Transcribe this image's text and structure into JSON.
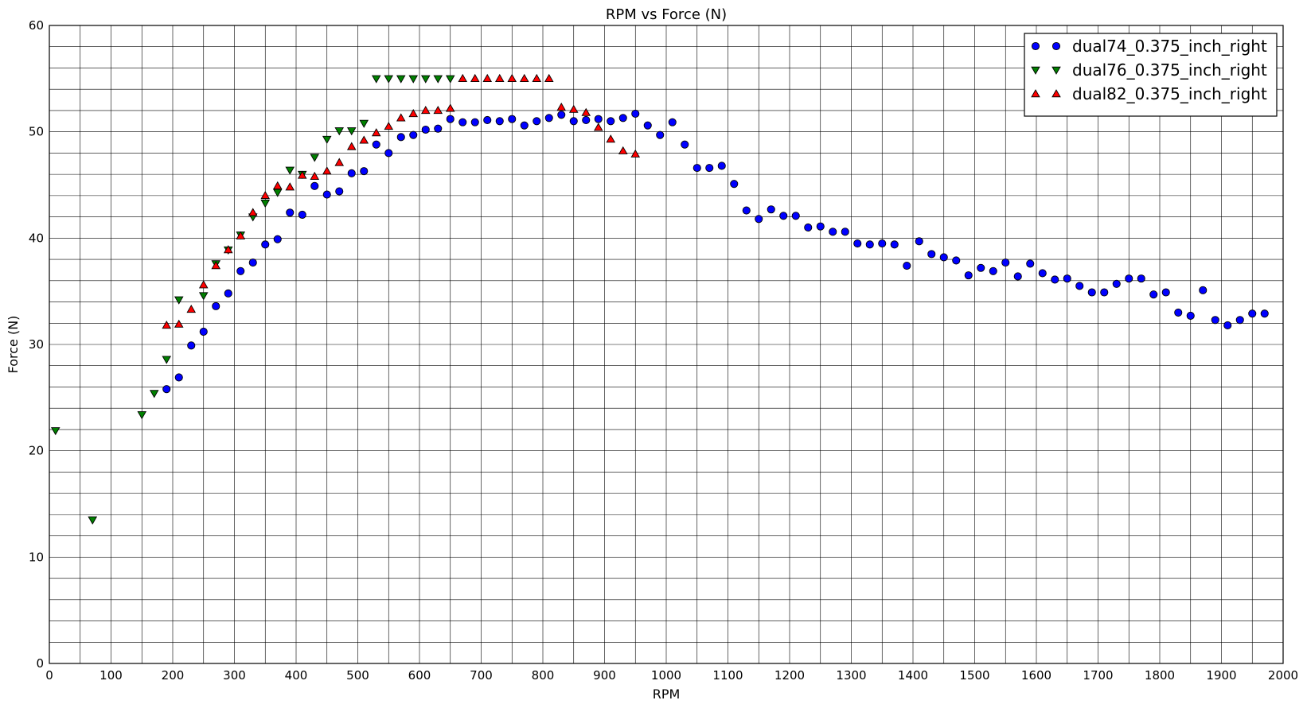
{
  "chart_data": {
    "type": "scatter",
    "title": "RPM vs Force (N)",
    "xlabel": "RPM",
    "ylabel": "Force (N)",
    "xlim": [
      0,
      2000
    ],
    "ylim": [
      0,
      60
    ],
    "x_ticks": [
      0,
      100,
      200,
      300,
      400,
      500,
      600,
      700,
      800,
      900,
      1000,
      1100,
      1200,
      1300,
      1400,
      1500,
      1600,
      1700,
      1800,
      1900,
      2000
    ],
    "y_ticks": [
      0,
      10,
      20,
      30,
      40,
      50,
      60
    ],
    "x_grid_step": 50,
    "y_grid_step": 2,
    "grid": true,
    "legend_position": "top-right",
    "series": [
      {
        "name": "dual74_0.375_inch_right",
        "marker": "circle",
        "color": "#0000ff",
        "points": [
          [
            190,
            25.8
          ],
          [
            210,
            26.9
          ],
          [
            230,
            29.9
          ],
          [
            250,
            31.2
          ],
          [
            270,
            33.6
          ],
          [
            290,
            34.8
          ],
          [
            310,
            36.9
          ],
          [
            330,
            37.7
          ],
          [
            350,
            39.4
          ],
          [
            370,
            39.9
          ],
          [
            390,
            42.4
          ],
          [
            410,
            42.2
          ],
          [
            430,
            44.9
          ],
          [
            450,
            44.1
          ],
          [
            470,
            44.4
          ],
          [
            490,
            46.1
          ],
          [
            510,
            46.3
          ],
          [
            530,
            48.8
          ],
          [
            550,
            48.0
          ],
          [
            570,
            49.5
          ],
          [
            590,
            49.7
          ],
          [
            610,
            50.2
          ],
          [
            630,
            50.3
          ],
          [
            650,
            51.2
          ],
          [
            670,
            50.9
          ],
          [
            690,
            50.9
          ],
          [
            710,
            51.1
          ],
          [
            730,
            51.0
          ],
          [
            750,
            51.2
          ],
          [
            770,
            50.6
          ],
          [
            790,
            51.0
          ],
          [
            810,
            51.3
          ],
          [
            830,
            51.6
          ],
          [
            850,
            51.0
          ],
          [
            870,
            51.1
          ],
          [
            890,
            51.2
          ],
          [
            910,
            51.0
          ],
          [
            930,
            51.3
          ],
          [
            950,
            51.7
          ],
          [
            970,
            50.6
          ],
          [
            990,
            49.7
          ],
          [
            1010,
            50.9
          ],
          [
            1030,
            48.8
          ],
          [
            1050,
            46.6
          ],
          [
            1070,
            46.6
          ],
          [
            1090,
            46.8
          ],
          [
            1110,
            45.1
          ],
          [
            1130,
            42.6
          ],
          [
            1150,
            41.8
          ],
          [
            1170,
            42.7
          ],
          [
            1190,
            42.1
          ],
          [
            1210,
            42.1
          ],
          [
            1230,
            41.0
          ],
          [
            1250,
            41.1
          ],
          [
            1270,
            40.6
          ],
          [
            1290,
            40.6
          ],
          [
            1310,
            39.5
          ],
          [
            1330,
            39.4
          ],
          [
            1350,
            39.5
          ],
          [
            1370,
            39.4
          ],
          [
            1390,
            37.4
          ],
          [
            1410,
            39.7
          ],
          [
            1430,
            38.5
          ],
          [
            1450,
            38.2
          ],
          [
            1470,
            37.9
          ],
          [
            1490,
            36.5
          ],
          [
            1510,
            37.2
          ],
          [
            1530,
            36.9
          ],
          [
            1550,
            37.7
          ],
          [
            1570,
            36.4
          ],
          [
            1590,
            37.6
          ],
          [
            1610,
            36.7
          ],
          [
            1630,
            36.1
          ],
          [
            1650,
            36.2
          ],
          [
            1670,
            35.5
          ],
          [
            1690,
            34.9
          ],
          [
            1710,
            34.9
          ],
          [
            1730,
            35.7
          ],
          [
            1750,
            36.2
          ],
          [
            1770,
            36.2
          ],
          [
            1790,
            34.7
          ],
          [
            1810,
            34.9
          ],
          [
            1830,
            33.0
          ],
          [
            1850,
            32.7
          ],
          [
            1870,
            35.1
          ],
          [
            1890,
            32.3
          ],
          [
            1910,
            31.8
          ],
          [
            1930,
            32.3
          ],
          [
            1950,
            32.9
          ],
          [
            1970,
            32.9
          ]
        ]
      },
      {
        "name": "dual76_0.375_inch_right",
        "marker": "triangle-down",
        "color": "#008000",
        "points": [
          [
            10,
            21.9
          ],
          [
            70,
            13.5
          ],
          [
            150,
            23.4
          ],
          [
            170,
            25.4
          ],
          [
            190,
            28.6
          ],
          [
            210,
            34.2
          ],
          [
            250,
            34.6
          ],
          [
            270,
            37.6
          ],
          [
            290,
            38.9
          ],
          [
            310,
            40.3
          ],
          [
            330,
            42.0
          ],
          [
            350,
            43.3
          ],
          [
            370,
            44.3
          ],
          [
            390,
            46.4
          ],
          [
            410,
            46.0
          ],
          [
            430,
            47.6
          ],
          [
            450,
            49.3
          ],
          [
            470,
            50.1
          ],
          [
            490,
            50.1
          ],
          [
            510,
            50.8
          ],
          [
            530,
            55.0
          ],
          [
            550,
            55.0
          ],
          [
            570,
            55.0
          ],
          [
            590,
            55.0
          ],
          [
            610,
            55.0
          ],
          [
            630,
            55.0
          ],
          [
            650,
            55.0
          ]
        ]
      },
      {
        "name": "dual82_0.375_inch_right",
        "marker": "triangle-up",
        "color": "#ff0000",
        "points": [
          [
            190,
            31.8
          ],
          [
            210,
            31.9
          ],
          [
            230,
            33.3
          ],
          [
            250,
            35.6
          ],
          [
            270,
            37.4
          ],
          [
            290,
            38.9
          ],
          [
            310,
            40.2
          ],
          [
            330,
            42.4
          ],
          [
            350,
            44.0
          ],
          [
            370,
            44.9
          ],
          [
            390,
            44.8
          ],
          [
            410,
            45.9
          ],
          [
            430,
            45.8
          ],
          [
            450,
            46.3
          ],
          [
            470,
            47.1
          ],
          [
            490,
            48.6
          ],
          [
            510,
            49.2
          ],
          [
            530,
            49.9
          ],
          [
            550,
            50.5
          ],
          [
            570,
            51.3
          ],
          [
            590,
            51.7
          ],
          [
            610,
            52.0
          ],
          [
            630,
            52.0
          ],
          [
            650,
            52.2
          ],
          [
            670,
            55.0
          ],
          [
            690,
            55.0
          ],
          [
            710,
            55.0
          ],
          [
            730,
            55.0
          ],
          [
            750,
            55.0
          ],
          [
            770,
            55.0
          ],
          [
            790,
            55.0
          ],
          [
            810,
            55.0
          ],
          [
            830,
            52.3
          ],
          [
            850,
            52.1
          ],
          [
            870,
            51.8
          ],
          [
            890,
            50.4
          ],
          [
            910,
            49.3
          ],
          [
            930,
            48.2
          ],
          [
            950,
            47.9
          ]
        ]
      }
    ]
  }
}
